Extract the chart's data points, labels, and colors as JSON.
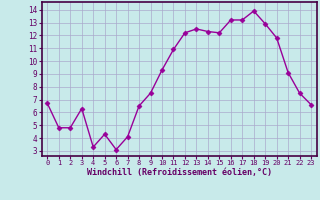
{
  "x": [
    0,
    1,
    2,
    3,
    4,
    5,
    6,
    7,
    8,
    9,
    10,
    11,
    12,
    13,
    14,
    15,
    16,
    17,
    18,
    19,
    20,
    21,
    22,
    23
  ],
  "y": [
    6.7,
    4.8,
    4.8,
    6.3,
    3.3,
    4.3,
    3.1,
    4.1,
    6.5,
    7.5,
    9.3,
    10.9,
    12.2,
    12.5,
    12.3,
    12.2,
    13.2,
    13.2,
    13.9,
    12.9,
    11.8,
    9.1,
    7.5,
    6.6
  ],
  "line_color": "#990099",
  "marker": "D",
  "markersize": 2.5,
  "linewidth": 1.0,
  "bg_color": "#c8eaea",
  "grid_color": "#aaaacc",
  "xlabel": "Windchill (Refroidissement éolien,°C)",
  "xlabel_color": "#660066",
  "ylabel_ticks": [
    3,
    4,
    5,
    6,
    7,
    8,
    9,
    10,
    11,
    12,
    13,
    14
  ],
  "xlim": [
    -0.5,
    23.5
  ],
  "ylim": [
    2.6,
    14.6
  ],
  "xticks": [
    0,
    1,
    2,
    3,
    4,
    5,
    6,
    7,
    8,
    9,
    10,
    11,
    12,
    13,
    14,
    15,
    16,
    17,
    18,
    19,
    20,
    21,
    22,
    23
  ],
  "tick_color": "#660066",
  "axis_color": "#660066",
  "border_color": "#440044"
}
